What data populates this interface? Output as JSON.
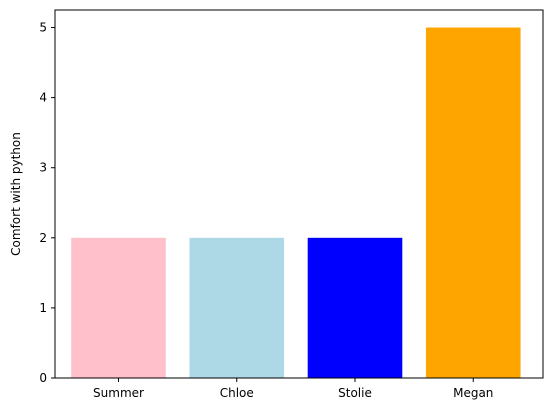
{
  "chart_data": {
    "type": "bar",
    "title": "",
    "xlabel": "",
    "ylabel": "Comfort with python",
    "categories": [
      "Summer",
      "Chloe",
      "Stolie",
      "Megan"
    ],
    "values": [
      2,
      2,
      2,
      5
    ],
    "colors": [
      "#ffc0cb",
      "#add8e6",
      "#0000ff",
      "#ffa500"
    ],
    "ylim": [
      0,
      5.25
    ],
    "yticks": [
      0,
      1,
      2,
      3,
      4,
      5
    ],
    "grid": false,
    "legend": "none"
  }
}
